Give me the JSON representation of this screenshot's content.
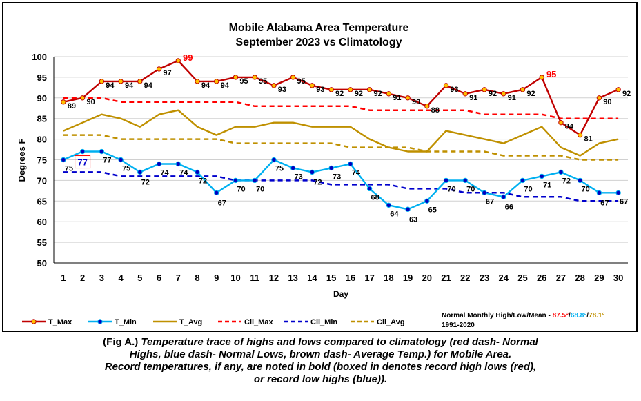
{
  "chart_data": {
    "type": "line",
    "title": "Mobile Alabama Area Temperature",
    "subtitle": "September 2023 vs Climatology",
    "xlabel": "Day",
    "ylabel": "Degrees F",
    "ylim": [
      50,
      100
    ],
    "yticks": [
      "50",
      "55",
      "60",
      "65",
      "70",
      "75",
      "80",
      "85",
      "90",
      "95",
      "100"
    ],
    "grid": true,
    "legend_position": "bottom",
    "x": [
      1,
      2,
      3,
      4,
      5,
      6,
      7,
      8,
      9,
      10,
      11,
      12,
      13,
      14,
      15,
      16,
      17,
      18,
      19,
      20,
      21,
      22,
      23,
      24,
      25,
      26,
      27,
      28,
      29,
      30
    ],
    "series": [
      {
        "name": "T_Max",
        "color": "#c00000",
        "style": "solid-marker",
        "marker_fill": "#ffc000",
        "values": [
          89,
          90,
          94,
          94,
          94,
          97,
          99,
          94,
          94,
          95,
          95,
          93,
          95,
          93,
          92,
          92,
          92,
          91,
          90,
          88,
          93,
          91,
          92,
          91,
          92,
          95,
          84,
          81,
          90,
          92
        ]
      },
      {
        "name": "T_Min",
        "color": "#00b0f0",
        "style": "solid-marker",
        "marker_fill": "#0000c0",
        "values": [
          75,
          77,
          77,
          75,
          72,
          74,
          74,
          72,
          67,
          70,
          70,
          75,
          73,
          72,
          73,
          74,
          68,
          64,
          63,
          65,
          70,
          70,
          67,
          66,
          70,
          71,
          72,
          70,
          67,
          67
        ]
      },
      {
        "name": "T_Avg",
        "color": "#bf9000",
        "style": "solid",
        "values": [
          82,
          84,
          86,
          85,
          83,
          86,
          87,
          83,
          81,
          83,
          83,
          84,
          84,
          83,
          83,
          83,
          80,
          78,
          77,
          77,
          82,
          81,
          80,
          79,
          81,
          83,
          78,
          76,
          79,
          80
        ]
      },
      {
        "name": "Cli_Max",
        "color": "#ff0000",
        "style": "dashed",
        "values": [
          90,
          90,
          90,
          89,
          89,
          89,
          89,
          89,
          89,
          89,
          88,
          88,
          88,
          88,
          88,
          88,
          87,
          87,
          87,
          87,
          87,
          87,
          86,
          86,
          86,
          86,
          85,
          85,
          85,
          85
        ]
      },
      {
        "name": "Cli_Min",
        "color": "#0000cc",
        "style": "dashed",
        "values": [
          72,
          72,
          72,
          71,
          71,
          71,
          71,
          71,
          71,
          70,
          70,
          70,
          70,
          70,
          69,
          69,
          69,
          69,
          68,
          68,
          68,
          67,
          67,
          67,
          66,
          66,
          66,
          65,
          65,
          65
        ]
      },
      {
        "name": "Cli_Avg",
        "color": "#bf9000",
        "style": "dashed",
        "values": [
          81,
          81,
          81,
          80,
          80,
          80,
          80,
          80,
          80,
          79,
          79,
          79,
          79,
          79,
          79,
          78,
          78,
          78,
          78,
          77,
          77,
          77,
          77,
          76,
          76,
          76,
          76,
          75,
          75,
          75
        ]
      }
    ],
    "data_labels": {
      "max": [
        "89",
        "90",
        "94",
        "94",
        "94",
        "97",
        "99",
        "94",
        "94",
        "95",
        "95",
        "93",
        "95",
        "93",
        "92",
        "92",
        "92",
        "91",
        "90",
        "88",
        "93",
        "91",
        "92",
        "91",
        "92",
        "95",
        "84",
        "81",
        "90",
        "92"
      ],
      "min": [
        "75",
        "77",
        "77",
        "75",
        "72",
        "74",
        "74",
        "72",
        "67",
        "70",
        "70",
        "75",
        "73",
        "72",
        "73",
        "74",
        "68",
        "64",
        "63",
        "65",
        "70",
        "70",
        "67",
        "66",
        "70",
        "71",
        "72",
        "70",
        "67",
        "67"
      ],
      "max_record_days": [
        7,
        26
      ],
      "min_boxed_day": 2
    },
    "annotations": {
      "normals_label": "Normal Monthly High/Low/Mean - ",
      "normal_high": "87.5°",
      "normal_low": "68.8°",
      "normal_mean": "78.1°",
      "sep": "/",
      "period": "1991-2020"
    }
  },
  "caption": {
    "fig": "(Fig A.)",
    "line1": " Temperature trace of highs and lows compared to climatology (red dash- Normal",
    "line2": "Highs, blue dash- Normal Lows, brown dash- Average Temp.) for Mobile Area.",
    "line3": "Record temperatures, if any, are noted in bold (boxed in denotes record high lows (red),",
    "line4": "or record low highs (blue))."
  }
}
